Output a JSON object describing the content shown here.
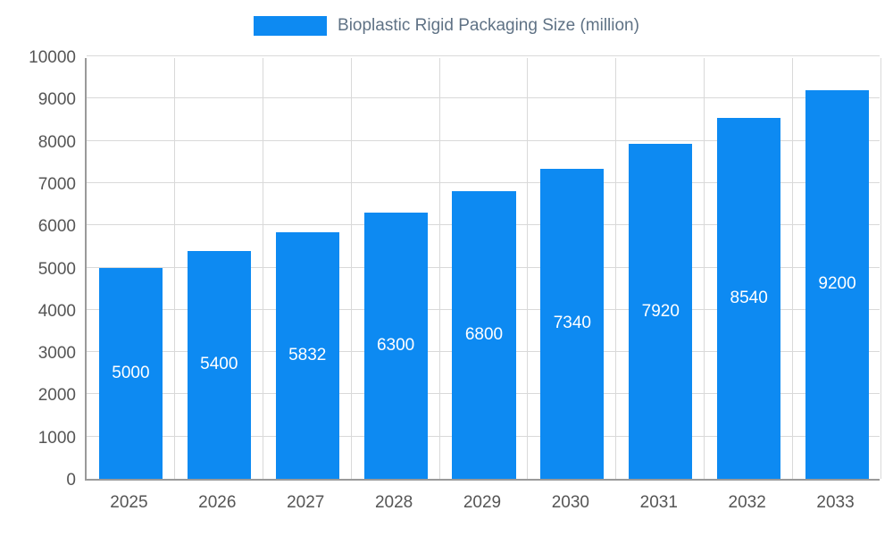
{
  "legend": {
    "label": "Bioplastic Rigid Packaging Size (million)",
    "swatch_color": "#0d8af2"
  },
  "chart_data": {
    "type": "bar",
    "title": "Bioplastic Rigid Packaging Size (million)",
    "categories": [
      "2025",
      "2026",
      "2027",
      "2028",
      "2029",
      "2030",
      "2031",
      "2032",
      "2033"
    ],
    "values": [
      5000,
      5400,
      5832,
      6300,
      6800,
      7340,
      7920,
      8540,
      9200
    ],
    "xlabel": "",
    "ylabel": "",
    "ylim": [
      0,
      10000
    ],
    "yticks": [
      0,
      1000,
      2000,
      3000,
      4000,
      5000,
      6000,
      7000,
      8000,
      9000,
      10000
    ],
    "bar_color": "#0d8af2",
    "value_label_color": "#ffffff",
    "grid": true,
    "legend_position": "top"
  }
}
